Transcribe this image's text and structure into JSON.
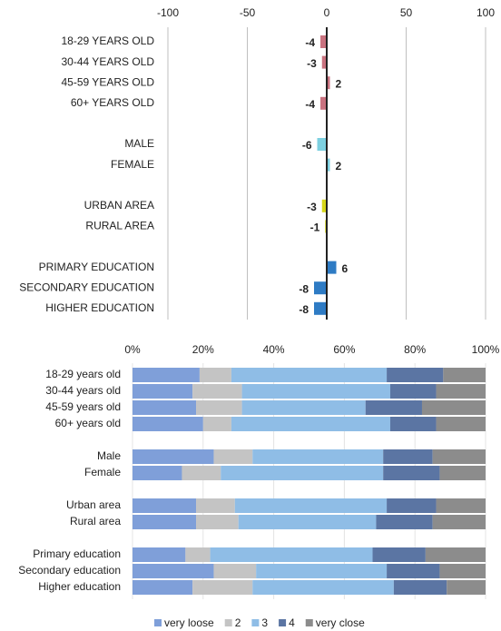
{
  "chart_data": [
    {
      "type": "diverging_bar",
      "categories": [
        "18-29 YEARS OLD",
        "30-44 YEARS OLD",
        "45-59 YEARS OLD",
        "60+ YEARS OLD",
        null,
        "MALE",
        "FEMALE",
        null,
        "URBAN AREA",
        "RURAL AREA",
        null,
        "PRIMARY EDUCATION",
        "SECONDARY EDUCATION",
        "HIGHER EDUCATION"
      ],
      "values": [
        -4,
        -3,
        2,
        -4,
        null,
        -6,
        2,
        null,
        -3,
        -1,
        null,
        6,
        -8,
        -8
      ],
      "colors": [
        "#c9727f",
        "#c9727f",
        "#c9727f",
        "#c9727f",
        null,
        "#7dd0e0",
        "#7dd0e0",
        null,
        "#d6d61a",
        "#d6d61a",
        null,
        "#2e7bc4",
        "#2e7bc4",
        "#2e7bc4"
      ],
      "xlim": [
        -100,
        100
      ],
      "xticks": [
        -100,
        -50,
        0,
        50,
        100
      ],
      "grid": true
    },
    {
      "type": "stacked_bar",
      "categories": [
        "18-29  years old",
        "30-44  years old",
        "45-59  years old",
        "60+  years old",
        null,
        "Male",
        "Female",
        null,
        "Urban area",
        "Rural area",
        null,
        "Primary education",
        "Secondary education",
        "Higher education"
      ],
      "series": [
        {
          "name": "very loose",
          "color": "#7f9fd9",
          "values": [
            19,
            17,
            18,
            20,
            null,
            23,
            14,
            null,
            18,
            18,
            null,
            15,
            23,
            17
          ]
        },
        {
          "name": "2",
          "color": "#c4c4c4",
          "values": [
            9,
            14,
            13,
            8,
            null,
            11,
            11,
            null,
            11,
            12,
            null,
            7,
            12,
            17
          ]
        },
        {
          "name": "3",
          "color": "#8fbde6",
          "values": [
            44,
            42,
            35,
            45,
            null,
            37,
            46,
            null,
            43,
            39,
            null,
            46,
            37,
            40
          ]
        },
        {
          "name": "4",
          "color": "#5b75a3",
          "values": [
            16,
            13,
            16,
            13,
            null,
            14,
            16,
            null,
            14,
            16,
            null,
            15,
            15,
            15
          ]
        },
        {
          "name": "very close",
          "color": "#8c8c8c",
          "values": [
            12,
            14,
            18,
            14,
            null,
            15,
            13,
            null,
            14,
            15,
            null,
            17,
            13,
            11
          ]
        }
      ],
      "xlim": [
        0,
        100
      ],
      "xticks": [
        {
          "value": 0,
          "label": "0%"
        },
        {
          "value": 20,
          "label": "20%"
        },
        {
          "value": 40,
          "label": "40%"
        },
        {
          "value": 60,
          "label": "60%"
        },
        {
          "value": 80,
          "label": "80%"
        },
        {
          "value": 100,
          "label": "100%"
        }
      ],
      "grid": true
    }
  ]
}
